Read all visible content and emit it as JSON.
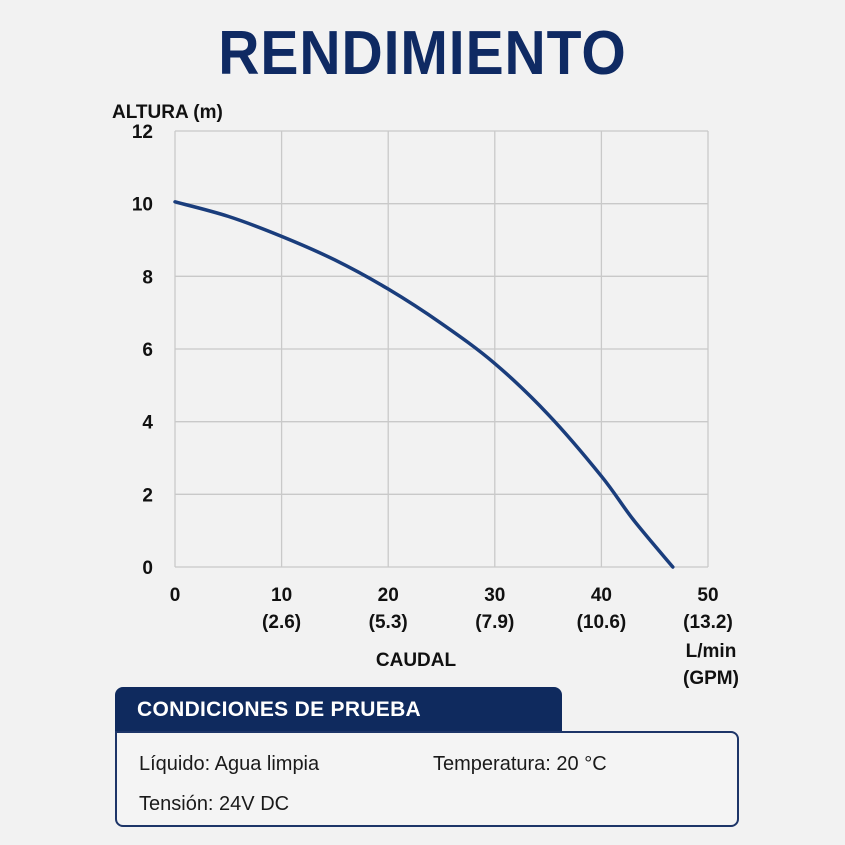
{
  "chart_data": {
    "type": "line",
    "title": "RENDIMIENTO",
    "ylabel": "ALTURA (m)",
    "xlabel": "CAUDAL",
    "xunit": [
      "L/min",
      "(GPM)"
    ],
    "xlim": [
      0,
      50
    ],
    "ylim": [
      0,
      12
    ],
    "xticks": [
      0,
      10,
      20,
      30,
      40,
      50
    ],
    "xtick_secondary": [
      "",
      "(2.6)",
      "(5.3)",
      "(7.9)",
      "(10.6)",
      "(13.2)"
    ],
    "yticks": [
      0,
      2,
      4,
      6,
      8,
      10,
      12
    ],
    "grid": true,
    "series": [
      {
        "color": "#1a3d7c",
        "x": [
          0,
          5,
          10,
          15,
          20,
          25,
          30,
          35,
          40,
          43,
          46.7
        ],
        "y": [
          10.05,
          9.65,
          9.1,
          8.45,
          7.65,
          6.7,
          5.6,
          4.2,
          2.5,
          1.3,
          0
        ]
      }
    ]
  },
  "test_conditions": {
    "header": "CONDICIONES DE PRUEBA",
    "liquid": "Líquido: Agua limpia",
    "temperature": "Temperatura: 20 °C",
    "voltage": "Tensión: 24V DC"
  }
}
